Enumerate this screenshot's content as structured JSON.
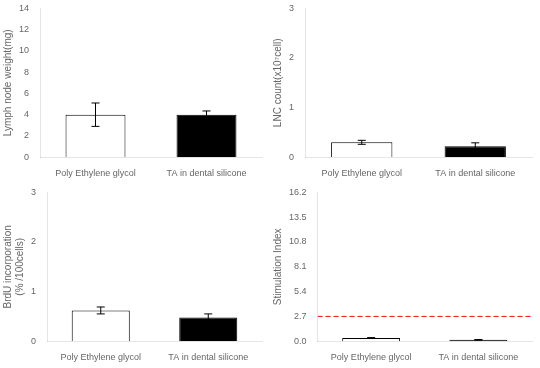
{
  "chart_data": [
    {
      "type": "bar",
      "ylabel": "Lymph node weight(mg)",
      "categories": [
        "Poly Ethylene glycol",
        "TA in dental silicone"
      ],
      "values": [
        4.0,
        4.0
      ],
      "errors": [
        1.1,
        0.35
      ],
      "colors": [
        "#ffffff",
        "#000000"
      ],
      "ylim": [
        0,
        14
      ],
      "yticks": [
        0,
        2,
        4,
        6,
        8,
        10,
        12,
        14
      ],
      "grid": false
    },
    {
      "type": "bar",
      "ylabel": "LNC count(x10⁷cell)",
      "categories": [
        "Poly Ethylene glycol",
        "TA in dental silicone"
      ],
      "values": [
        0.3,
        0.22
      ],
      "errors": [
        0.04,
        0.07
      ],
      "colors": [
        "#ffffff",
        "#000000"
      ],
      "ylim": [
        0,
        3
      ],
      "yticks": [
        0,
        1,
        2,
        3
      ],
      "grid": false
    },
    {
      "type": "bar",
      "ylabel": "BrdU incorporation\n(% /100cells)",
      "categories": [
        "Poly Ethylene glycol",
        "TA in dental silicone"
      ],
      "values": [
        0.62,
        0.48
      ],
      "errors": [
        0.07,
        0.07
      ],
      "colors": [
        "#ffffff",
        "#000000"
      ],
      "ylim": [
        0,
        3
      ],
      "yticks": [
        0,
        1,
        2,
        3
      ],
      "grid": false
    },
    {
      "type": "bar",
      "ylabel": "Stimulation Index",
      "categories": [
        "Poly Ethylene glycol",
        "TA in dental silicone"
      ],
      "values": [
        0.35,
        0.15
      ],
      "errors": [
        0.04,
        0.03
      ],
      "colors": [
        "#ffffff",
        "#000000"
      ],
      "ylim": [
        0,
        16.2
      ],
      "yticks": [
        {
          "value": 0,
          "label": "0.0"
        },
        2.7,
        5.4,
        8.1,
        10.8,
        13.5,
        16.2
      ],
      "grid": false,
      "reference_line": {
        "value": 2.7,
        "color": "red"
      }
    }
  ]
}
